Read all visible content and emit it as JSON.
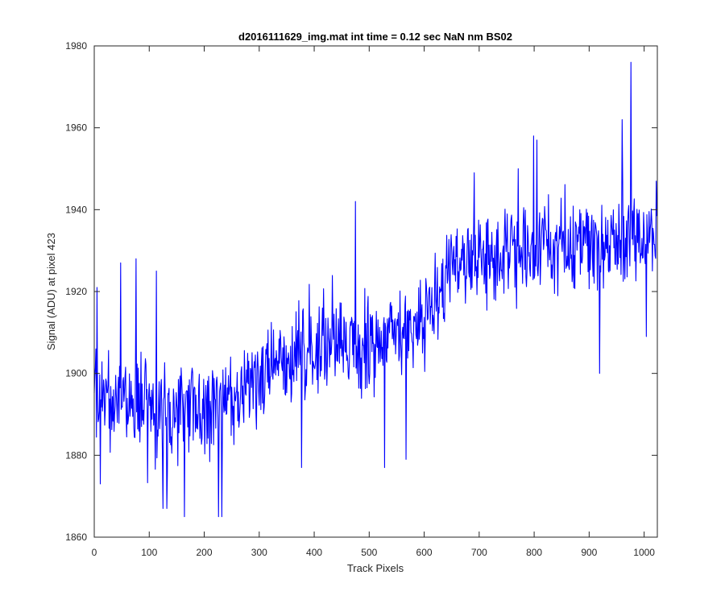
{
  "chart_data": {
    "type": "line",
    "title": "d2016111629_img.mat int time = 0.12 sec  NaN nm BS02",
    "xlabel": "Track Pixels",
    "ylabel": "Signal (ADU) at pixel 423",
    "xlim": [
      0,
      1024
    ],
    "ylim": [
      1860,
      1980
    ],
    "xticks": [
      0,
      100,
      200,
      300,
      400,
      500,
      600,
      700,
      800,
      900,
      1000
    ],
    "yticks": [
      1860,
      1880,
      1900,
      1920,
      1940,
      1960,
      1980
    ],
    "grid": false,
    "series": [
      {
        "name": "signal",
        "color": "#0000ff",
        "n_points": 1024,
        "trend_anchors": [
          [
            0,
            1895
          ],
          [
            100,
            1891
          ],
          [
            200,
            1889
          ],
          [
            300,
            1898
          ],
          [
            400,
            1908
          ],
          [
            500,
            1906
          ],
          [
            600,
            1914
          ],
          [
            650,
            1924
          ],
          [
            700,
            1928
          ],
          [
            800,
            1930
          ],
          [
            900,
            1932
          ],
          [
            1000,
            1934
          ],
          [
            1023,
            1933
          ]
        ],
        "noise_amplitude": 11,
        "notable_points": [
          [
            5,
            1921
          ],
          [
            11,
            1873
          ],
          [
            48,
            1927
          ],
          [
            76,
            1928
          ],
          [
            113,
            1925
          ],
          [
            125,
            1867
          ],
          [
            132,
            1867
          ],
          [
            164,
            1865
          ],
          [
            226,
            1865
          ],
          [
            232,
            1865
          ],
          [
            377,
            1877
          ],
          [
            475,
            1942
          ],
          [
            528,
            1877
          ],
          [
            567,
            1879
          ],
          [
            691,
            1949
          ],
          [
            771,
            1950
          ],
          [
            799,
            1958
          ],
          [
            805,
            1957
          ],
          [
            919,
            1900
          ],
          [
            960,
            1962
          ],
          [
            976,
            1976
          ],
          [
            1004,
            1909
          ]
        ]
      }
    ],
    "colors": {
      "line": "#0000ff",
      "axes": "#262626",
      "background": "#ffffff"
    }
  }
}
